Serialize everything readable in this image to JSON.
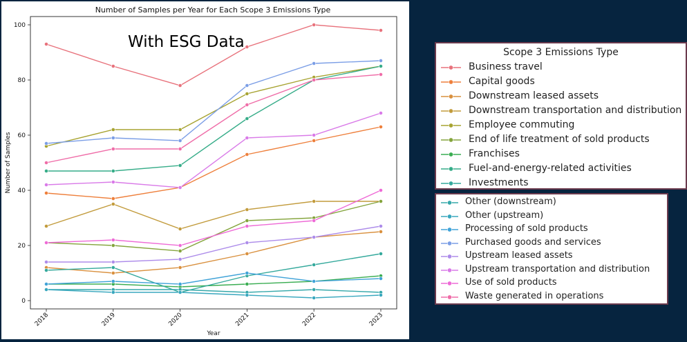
{
  "chart_data": {
    "type": "line",
    "title": "Number of Samples per Year for Each Scope 3 Emissions Type",
    "annotation": "With ESG Data",
    "xlabel": "Year",
    "ylabel": "Number of Samples",
    "x": [
      2018,
      2019,
      2020,
      2021,
      2022,
      2023
    ],
    "x_tick_labels": [
      "2018",
      "2019",
      "2020",
      "2021",
      "2022",
      "2023"
    ],
    "ylim": [
      -3,
      103
    ],
    "y_ticks": [
      0,
      20,
      40,
      60,
      80,
      100
    ],
    "y_tick_labels": [
      "0",
      "20",
      "40",
      "60",
      "80",
      "100"
    ],
    "grid": false,
    "legend_title": "Scope 3 Emissions Type",
    "legend_placement": "outside right",
    "series": [
      {
        "name": "Business travel",
        "color": "#e8727c",
        "values": [
          93,
          85,
          78,
          92,
          100,
          98
        ]
      },
      {
        "name": "Capital goods",
        "color": "#ee7f3b",
        "values": [
          39,
          37,
          41,
          53,
          58,
          63
        ]
      },
      {
        "name": "Downstream leased assets",
        "color": "#d9903e",
        "values": [
          12,
          10,
          12,
          17,
          23,
          25
        ]
      },
      {
        "name": "Downstream transportation and distribution",
        "color": "#c29b3c",
        "values": [
          27,
          35,
          26,
          33,
          36,
          36
        ]
      },
      {
        "name": "Employee commuting",
        "color": "#a7a331",
        "values": [
          56,
          62,
          62,
          75,
          81,
          85
        ]
      },
      {
        "name": "End of life treatment of sold products",
        "color": "#84a43c",
        "values": [
          21,
          20,
          18,
          29,
          30,
          36
        ]
      },
      {
        "name": "Franchises",
        "color": "#3aad52",
        "values": [
          6,
          6,
          5,
          6,
          7,
          9
        ]
      },
      {
        "name": "Fuel-and-energy-related activities",
        "color": "#35ac88",
        "values": [
          47,
          47,
          49,
          66,
          80,
          85
        ]
      },
      {
        "name": "Investments",
        "color": "#34a99c",
        "values": [
          11,
          12,
          3,
          9,
          13,
          17
        ]
      },
      {
        "name": "Other (downstream)",
        "color": "#35a8aa",
        "values": [
          4,
          4,
          4,
          3,
          4,
          3
        ]
      },
      {
        "name": "Other (upstream)",
        "color": "#38a7be",
        "values": [
          4,
          3,
          3,
          2,
          1,
          2
        ]
      },
      {
        "name": "Processing of sold products",
        "color": "#41a3d8",
        "values": [
          6,
          7,
          6,
          10,
          7,
          8
        ]
      },
      {
        "name": "Purchased goods and services",
        "color": "#7b9ee6",
        "values": [
          57,
          59,
          58,
          78,
          86,
          87
        ]
      },
      {
        "name": "Upstream leased assets",
        "color": "#ad8cea",
        "values": [
          14,
          14,
          15,
          21,
          23,
          27
        ]
      },
      {
        "name": "Upstream transportation and distribution",
        "color": "#d97ae8",
        "values": [
          42,
          43,
          41,
          59,
          60,
          68
        ]
      },
      {
        "name": "Use of sold products",
        "color": "#ee6ad6",
        "values": [
          21,
          22,
          20,
          27,
          29,
          40
        ]
      },
      {
        "name": "Waste generated in operations",
        "color": "#ef6da8",
        "values": [
          50,
          55,
          55,
          71,
          80,
          82
        ]
      }
    ]
  }
}
